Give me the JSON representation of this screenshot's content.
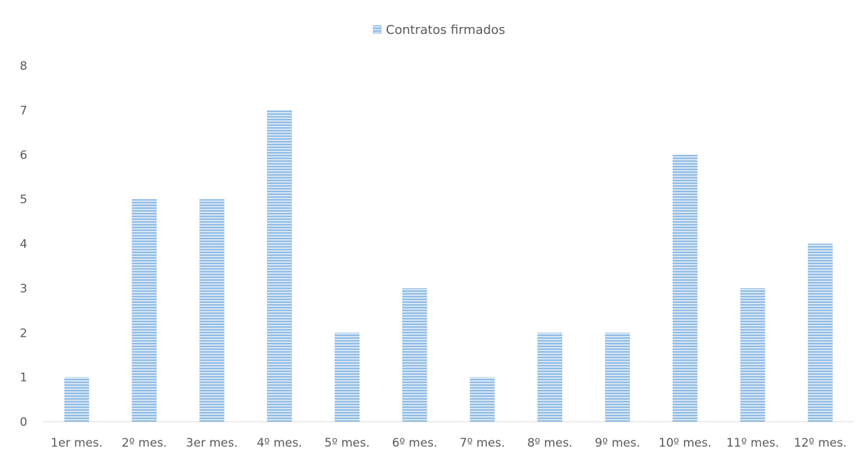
{
  "chart_data": {
    "type": "bar",
    "title": "",
    "xlabel": "",
    "ylabel": "",
    "categories": [
      "1er mes.",
      "2º mes.",
      "3er mes.",
      "4º mes.",
      "5º mes.",
      "6º mes.",
      "7º mes.",
      "8º mes.",
      "9º mes.",
      "10º mes.",
      "11º mes.",
      "12º mes."
    ],
    "series": [
      {
        "name": "Contratos firmados",
        "values": [
          1,
          5,
          5,
          7,
          2,
          3,
          1,
          2,
          2,
          6,
          3,
          4
        ],
        "color": "#9dc3e6"
      }
    ],
    "ylim": [
      0,
      8
    ],
    "yticks": [
      0,
      1,
      2,
      3,
      4,
      5,
      6,
      7,
      8
    ],
    "grid": false,
    "legend": "top-center"
  }
}
